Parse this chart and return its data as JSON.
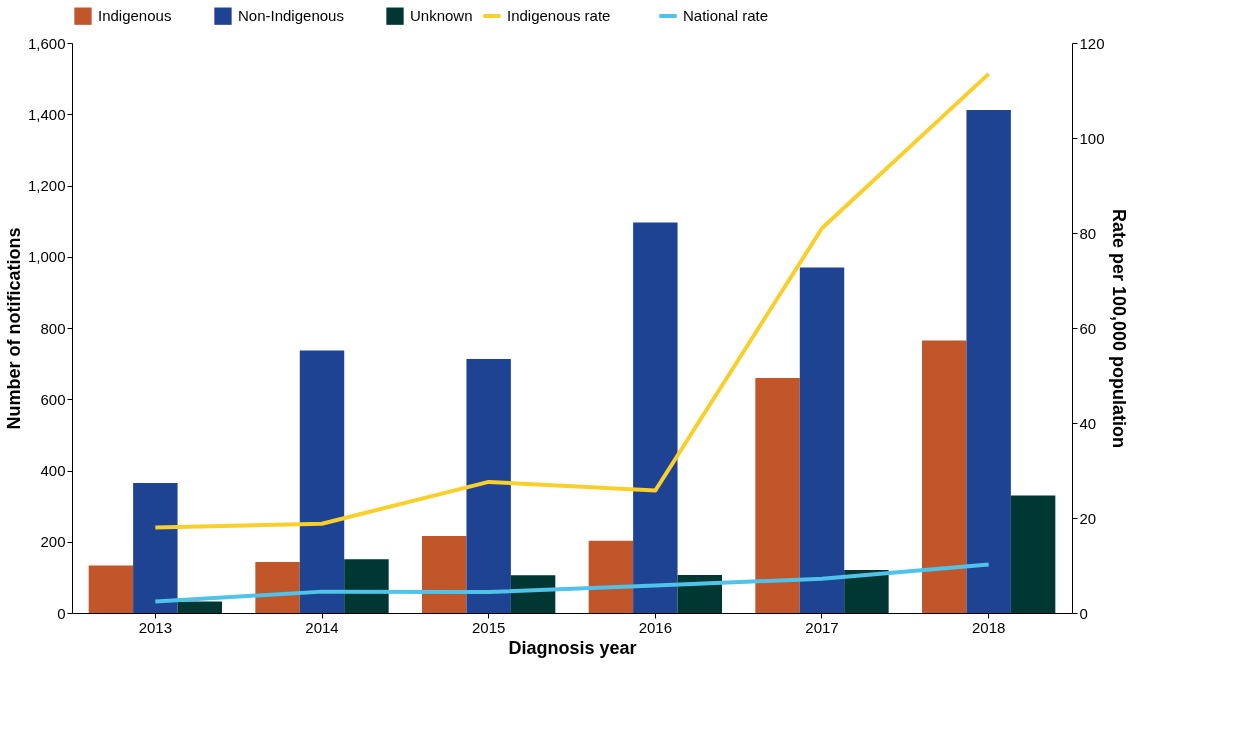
{
  "chart_data": {
    "type": "bar",
    "xlabel": "Diagnosis year",
    "ylabel": "Number of notifications",
    "y2label": "Rate per 100,000 population",
    "categories": [
      "2013",
      "2014",
      "2015",
      "2016",
      "2017",
      "2018"
    ],
    "series": [
      {
        "name": "Indigenous",
        "color": "#c0562a",
        "values": [
          133,
          143,
          216,
          203,
          660,
          765
        ]
      },
      {
        "name": "Non-Indigenous",
        "color": "#1f4393",
        "values": [
          365,
          737,
          713,
          1096,
          970,
          1412
        ]
      },
      {
        "name": "Unknown",
        "color": "#003732",
        "values": [
          32,
          151,
          106,
          107,
          121,
          330
        ]
      },
      {
        "name": "Indigenous rate",
        "type": "line",
        "axis": "y2",
        "color": "#f9cf2c",
        "values": [
          18.0,
          18.8,
          27.6,
          25.8,
          81,
          113.5
        ]
      },
      {
        "name": "National rate",
        "type": "line",
        "axis": "y2",
        "color": "#4fc3ea",
        "values": [
          2.4,
          4.5,
          4.4,
          5.8,
          7.2,
          10.2
        ]
      }
    ],
    "ylim": [
      0,
      1600
    ],
    "yticks": [
      0,
      200,
      400,
      600,
      800,
      {
        "value": 1000,
        "label": "1,000"
      },
      {
        "value": 1200,
        "label": "1,200"
      },
      {
        "value": 1400,
        "label": "1,400"
      },
      {
        "value": 1600,
        "label": "1,600"
      }
    ],
    "y2lim": [
      0,
      120
    ],
    "y2ticks": [
      0,
      20,
      40,
      60,
      80,
      100,
      120
    ],
    "grid": false,
    "legend": "top",
    "marker": "none",
    "line_style": "solid"
  }
}
